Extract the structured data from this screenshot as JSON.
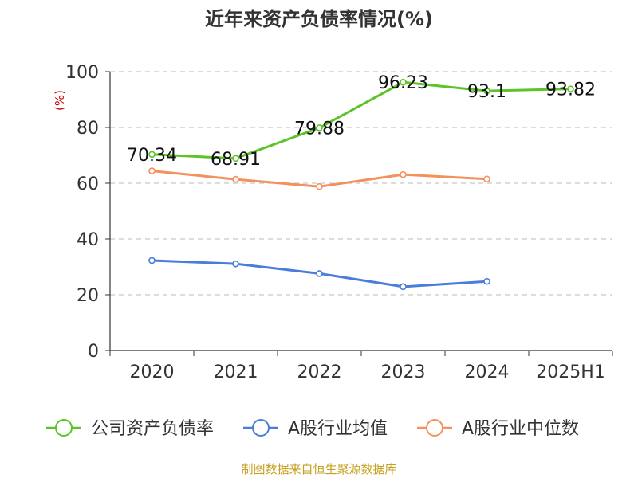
{
  "chart_data": {
    "type": "line",
    "title": "近年来资产负债率情况(%)",
    "ylabel": "(%)",
    "xlabel": "",
    "ylim": [
      0,
      100
    ],
    "yticks": [
      0,
      20,
      40,
      60,
      80,
      100
    ],
    "categories": [
      "2020",
      "2021",
      "2022",
      "2023",
      "2024",
      "2025H1"
    ],
    "series": [
      {
        "name": "公司资产负债率",
        "color": "#5cc328",
        "values": [
          70.34,
          68.91,
          79.88,
          96.23,
          93.1,
          93.82
        ],
        "labels": [
          "70.34",
          "68.91",
          "79.88",
          "96.23",
          "93.1",
          "93.82"
        ],
        "show_labels": true
      },
      {
        "name": "A股行业均值",
        "color": "#4a7ddb",
        "values": [
          32.3,
          31.1,
          27.6,
          22.9,
          24.8,
          null
        ],
        "show_labels": false
      },
      {
        "name": "A股行业中位数",
        "color": "#f4905c",
        "values": [
          64.4,
          61.4,
          58.8,
          63.1,
          61.5,
          null
        ],
        "show_labels": false
      }
    ],
    "grid": true,
    "legend_position": "bottom"
  },
  "footer": {
    "source": "制图数据来自恒生聚源数据库"
  }
}
